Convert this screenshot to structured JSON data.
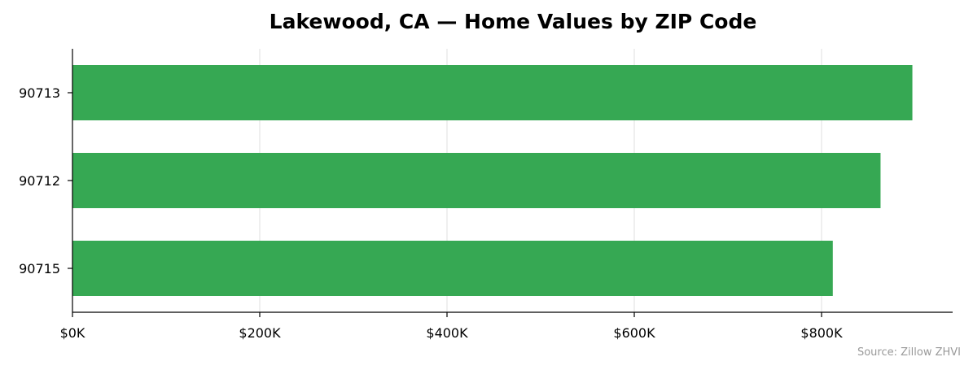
{
  "chart_data": {
    "type": "bar",
    "orientation": "horizontal",
    "title": "Lakewood, CA — Home Values by ZIP Code",
    "categories": [
      "90713",
      "90712",
      "90715"
    ],
    "values": [
      897000,
      863000,
      812000
    ],
    "xlim": [
      0,
      940000
    ],
    "xticks": [
      0,
      200000,
      400000,
      600000,
      800000
    ],
    "xtick_labels": [
      "$0K",
      "$200K",
      "$400K",
      "$600K",
      "$800K"
    ],
    "xlabel": "",
    "ylabel": "",
    "grid": "vertical",
    "legend": "none",
    "bar_color": "#36a853",
    "source_note": "Source: Zillow ZHVI"
  }
}
